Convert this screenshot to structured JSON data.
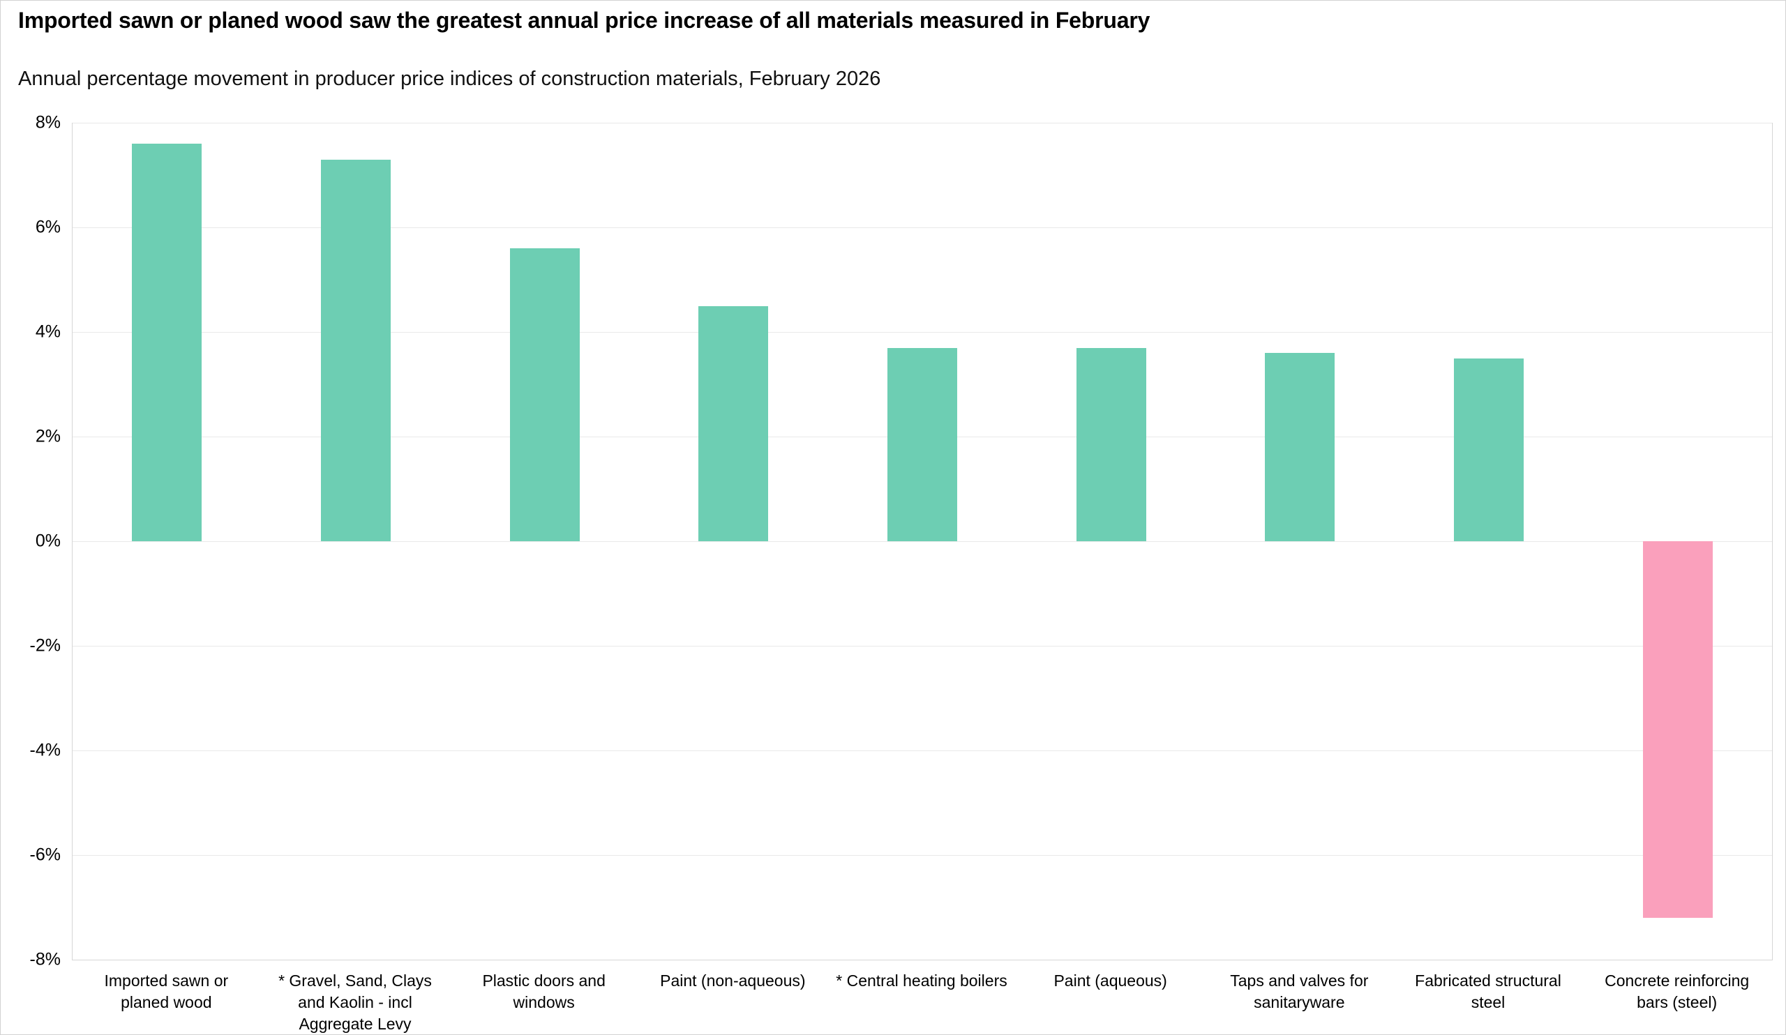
{
  "header": {
    "title": "Imported sawn or planed wood saw the greatest annual price increase of all materials measured in February",
    "subtitle": "Annual percentage movement in producer price indices of construction materials, February 2026"
  },
  "chart_data": {
    "type": "bar",
    "title": "Imported sawn or planed wood saw the greatest annual price increase of all materials measured in February",
    "subtitle": "Annual percentage movement in producer price indices of construction materials, February 2026",
    "categories": [
      "Imported sawn or\nplaned wood",
      "* Gravel, Sand, Clays\nand Kaolin - incl\nAggregate Levy",
      "Plastic doors and\nwindows",
      "Paint (non-aqueous)",
      "* Central heating boilers",
      "Paint (aqueous)",
      "Taps and valves for\nsanitaryware",
      "Fabricated structural\nsteel",
      "Concrete reinforcing\nbars (steel)"
    ],
    "values": [
      7.6,
      7.3,
      5.6,
      4.5,
      3.7,
      3.7,
      3.6,
      3.5,
      -7.2
    ],
    "unit": "%",
    "xlabel": "",
    "ylabel": "",
    "ylim": [
      -8,
      8
    ],
    "y_ticks": [
      {
        "label": "8%",
        "value": 8
      },
      {
        "label": "6%",
        "value": 6
      },
      {
        "label": "4%",
        "value": 4
      },
      {
        "label": "2%",
        "value": 2
      },
      {
        "label": "0%",
        "value": 0
      },
      {
        "label": "-2%",
        "value": -2
      },
      {
        "label": "-4%",
        "value": -4
      },
      {
        "label": "-6%",
        "value": -6
      },
      {
        "label": "-8%",
        "value": -8
      }
    ],
    "grid": true,
    "legend": "none",
    "colors": {
      "positive": "#6dceb3",
      "negative": "#faa0bc",
      "gridline": "#e9e9e9",
      "axis_border": "#d6d6d6"
    }
  }
}
